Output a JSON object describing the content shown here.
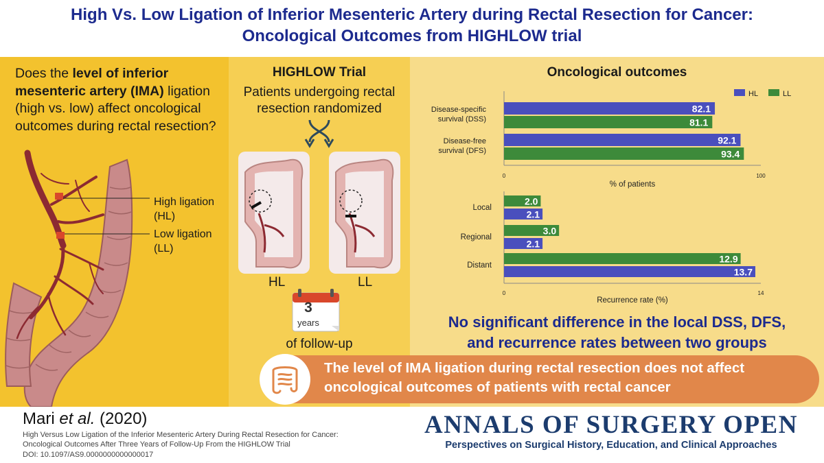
{
  "title": {
    "line1": "High Vs. Low Ligation of Inferior Mesenteric Artery during Rectal Resection for Cancer:",
    "line2": "Oncological Outcomes from HIGHLOW trial"
  },
  "question": {
    "part1": "Does the ",
    "bold1": "level of inferior mesenteric artery (IMA)",
    "part2": " ligation (high vs. low) affect oncological outcomes during rectal resection?"
  },
  "anatomy": {
    "high_label": "High ligation",
    "high_abbr": "(HL)",
    "low_label": "Low ligation",
    "low_abbr": "(LL)"
  },
  "trial": {
    "title": "HIGHLOW Trial",
    "subtitle_line1": "Patients undergoing rectal",
    "subtitle_line2": "resection randomized",
    "arm_hl": "HL",
    "arm_ll": "LL",
    "calendar_number": "3",
    "calendar_unit": "years",
    "followup": "of follow-up"
  },
  "outcomes": {
    "title": "Oncological outcomes",
    "conclusion_line1": "No significant difference in the local DSS, DFS,",
    "conclusion_line2": "and recurrence rates between two groups"
  },
  "colors": {
    "hl": "#4a4fbd",
    "ll": "#3d8a3a",
    "title_blue": "#1c2a8e",
    "banner": "#e1874a"
  },
  "chart_data": [
    {
      "type": "bar",
      "orientation": "horizontal",
      "title": "Oncological outcomes",
      "categories_line1": [
        "Disease-specific",
        "Disease-free"
      ],
      "categories_line2": [
        "survival (DSS)",
        "survival (DFS)"
      ],
      "series": [
        {
          "name": "HL",
          "values": [
            82.1,
            92.1
          ]
        },
        {
          "name": "LL",
          "values": [
            81.1,
            93.4
          ]
        }
      ],
      "value_labels": {
        "HL": [
          "82.1",
          "92.1"
        ],
        "LL": [
          "81.1",
          "93.4"
        ]
      },
      "xlabel": "% of patients",
      "xlim": [
        0,
        100
      ],
      "tick_labels": [
        "0",
        "100"
      ],
      "legend": [
        "HL",
        "LL"
      ],
      "legend_position": "top-right"
    },
    {
      "type": "bar",
      "orientation": "horizontal",
      "categories": [
        "Local",
        "Regional",
        "Distant"
      ],
      "series": [
        {
          "name": "LL",
          "values": [
            2.0,
            3.0,
            12.9
          ]
        },
        {
          "name": "HL",
          "values": [
            2.1,
            2.1,
            13.7
          ]
        }
      ],
      "value_labels": {
        "LL": [
          "2.0",
          "3.0",
          "12.9"
        ],
        "HL": [
          "2.1",
          "2.1",
          "13.7"
        ]
      },
      "xlabel": "Recurrence rate (%)",
      "xlim": [
        0,
        14
      ],
      "tick_labels": [
        "0",
        "14"
      ]
    }
  ],
  "banner": {
    "line1": "The level of IMA ligation during rectal resection does not affect",
    "line2": "oncological outcomes of patients with rectal cancer"
  },
  "citation": {
    "authors_name": "Mari ",
    "authors_etal": "et al.",
    "year": " (2020)",
    "title_line1": "High Versus Low Ligation of the Inferior Mesenteric Artery During Rectal Resection for Cancer:",
    "title_line2": "Oncological Outcomes After Three Years of Follow-Up From the HIGHLOW Trial",
    "doi": "DOI: 10.1097/AS9.0000000000000017"
  },
  "journal": {
    "name": "ANNALS OF SURGERY OPEN",
    "tagline": "Perspectives on Surgical History, Education, and Clinical Approaches"
  }
}
